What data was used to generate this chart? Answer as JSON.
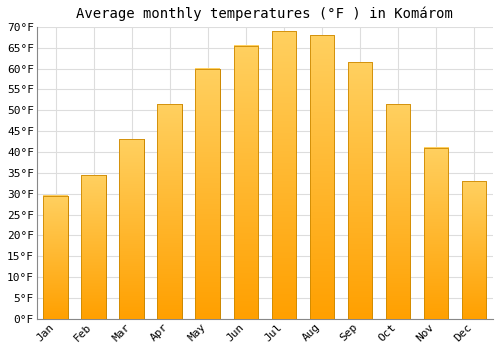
{
  "title": "Average monthly temperatures (°F ) in Komárom",
  "months": [
    "Jan",
    "Feb",
    "Mar",
    "Apr",
    "May",
    "Jun",
    "Jul",
    "Aug",
    "Sep",
    "Oct",
    "Nov",
    "Dec"
  ],
  "values": [
    29.5,
    34.5,
    43.0,
    51.5,
    60.0,
    65.5,
    69.0,
    68.0,
    61.5,
    51.5,
    41.0,
    33.0
  ],
  "bar_color_bottom": "#FFA000",
  "bar_color_top": "#FFD060",
  "bar_edge_color": "#CC8800",
  "ylim": [
    0,
    70
  ],
  "yticks": [
    0,
    5,
    10,
    15,
    20,
    25,
    30,
    35,
    40,
    45,
    50,
    55,
    60,
    65,
    70
  ],
  "background_color": "#FFFFFF",
  "grid_color": "#DDDDDD",
  "title_fontsize": 10,
  "tick_fontsize": 8
}
